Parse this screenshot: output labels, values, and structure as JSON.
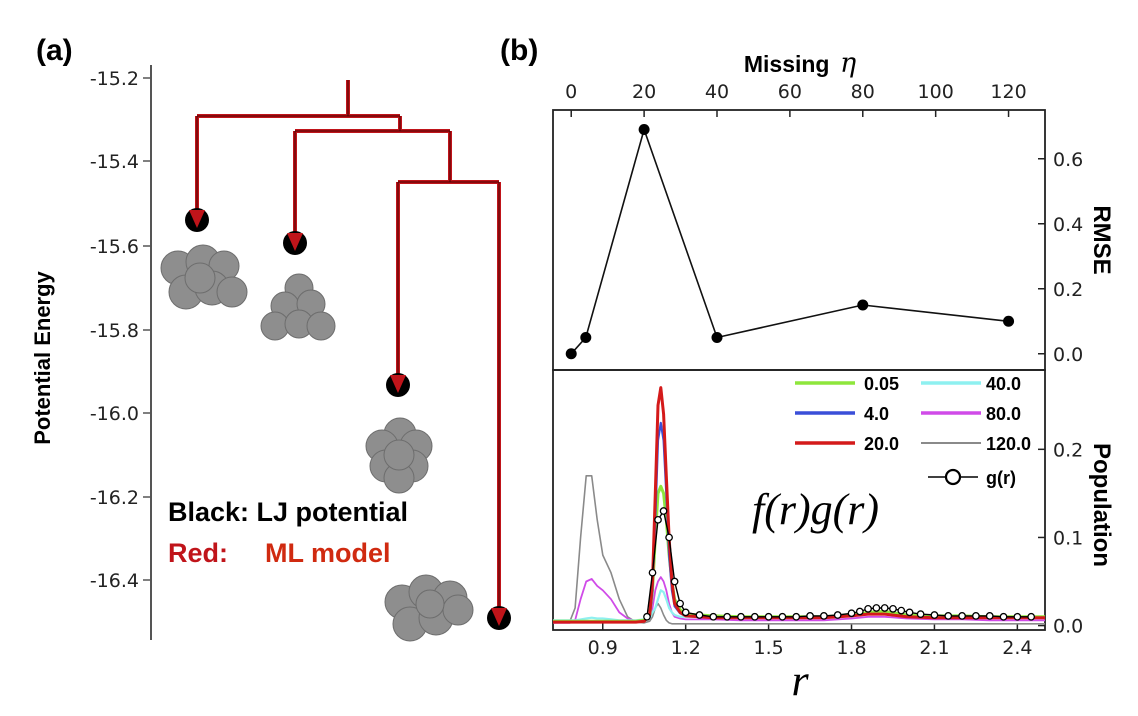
{
  "panel_a": {
    "label": "(a)",
    "ylabel": "Potential Energy",
    "yticks": [
      "-15.2",
      "-15.4",
      "-15.6",
      "-15.8",
      "-16.0",
      "-16.2",
      "-16.4"
    ],
    "legend_black": "Black: LJ potential",
    "legend_red_prefix": "Red:",
    "legend_red_value": "ML model",
    "colors": {
      "red": "#c0141a",
      "black": "#000000",
      "atom": "#8e8e8e"
    }
  },
  "panel_b": {
    "label": "(b)",
    "top_axis_label": "Missing",
    "top_axis_symbol": "η",
    "right_upper_label": "RMSE",
    "right_lower_label": "Population",
    "x_symbol": "r",
    "formula": "f(r)g(r)",
    "legend": [
      {
        "label": "0.05",
        "color": "#8ee63c"
      },
      {
        "label": "40.0",
        "color": "#8ef0f0"
      },
      {
        "label": "4.0",
        "color": "#3a4fd8"
      },
      {
        "label": "80.0",
        "color": "#d04be8"
      },
      {
        "label": "20.0",
        "color": "#d41a1a"
      },
      {
        "label": "120.0",
        "color": "#8a8a8a"
      },
      {
        "label": "g(r)",
        "color": "#000000"
      }
    ]
  },
  "chart_data": [
    {
      "type": "line",
      "x": [
        0,
        4,
        20,
        40,
        80,
        120
      ],
      "series": [
        {
          "values": [
            0.0,
            0.05,
            0.69,
            0.05,
            0.15,
            0.1
          ]
        }
      ],
      "xlabel": "Missing η",
      "ylabel": "RMSE",
      "xlim": [
        -5,
        130
      ],
      "ylim": [
        -0.05,
        0.75
      ],
      "xticks": [
        "0",
        "20",
        "40",
        "60",
        "80",
        "100",
        "120"
      ],
      "yticks": [
        "0.0",
        "0.2",
        "0.4",
        "0.6"
      ]
    },
    {
      "type": "line",
      "xlabel": "r",
      "ylabel": "Population",
      "xlim": [
        0.72,
        2.5
      ],
      "ylim": [
        -0.005,
        0.29
      ],
      "xticks": [
        "0.9",
        "1.2",
        "1.5",
        "1.8",
        "2.1",
        "2.4"
      ],
      "yticks": [
        "0.0",
        "0.1",
        "0.2"
      ],
      "r": [
        0.72,
        0.78,
        0.8,
        0.82,
        0.84,
        0.86,
        0.88,
        0.9,
        0.93,
        0.96,
        0.99,
        1.02,
        1.05,
        1.07,
        1.08,
        1.09,
        1.1,
        1.11,
        1.12,
        1.13,
        1.14,
        1.15,
        1.16,
        1.18,
        1.2,
        1.25,
        1.3,
        1.4,
        1.5,
        1.6,
        1.7,
        1.8,
        1.86,
        1.92,
        2.0,
        2.1,
        2.2,
        2.3,
        2.4,
        2.5
      ],
      "series": [
        {
          "name": "0.05",
          "values": [
            0.005,
            0.005,
            0.005,
            0.005,
            0.005,
            0.005,
            0.005,
            0.005,
            0.005,
            0.005,
            0.005,
            0.005,
            0.006,
            0.012,
            0.04,
            0.1,
            0.15,
            0.158,
            0.15,
            0.12,
            0.08,
            0.05,
            0.03,
            0.018,
            0.013,
            0.012,
            0.011,
            0.01,
            0.01,
            0.01,
            0.01,
            0.012,
            0.015,
            0.016,
            0.012,
            0.011,
            0.011,
            0.01,
            0.01,
            0.01
          ]
        },
        {
          "name": "40.0",
          "values": [
            0.006,
            0.006,
            0.006,
            0.007,
            0.008,
            0.009,
            0.008,
            0.008,
            0.007,
            0.006,
            0.006,
            0.006,
            0.007,
            0.009,
            0.015,
            0.02,
            0.03,
            0.04,
            0.038,
            0.03,
            0.02,
            0.015,
            0.012,
            0.01,
            0.01,
            0.01,
            0.01,
            0.01,
            0.01,
            0.01,
            0.01,
            0.012,
            0.014,
            0.014,
            0.011,
            0.01,
            0.01,
            0.01,
            0.01,
            0.01
          ]
        },
        {
          "name": "4.0",
          "values": [
            0.004,
            0.004,
            0.004,
            0.004,
            0.004,
            0.004,
            0.004,
            0.004,
            0.004,
            0.004,
            0.004,
            0.004,
            0.005,
            0.01,
            0.04,
            0.12,
            0.21,
            0.23,
            0.21,
            0.15,
            0.08,
            0.04,
            0.022,
            0.014,
            0.011,
            0.01,
            0.009,
            0.009,
            0.009,
            0.009,
            0.009,
            0.011,
            0.013,
            0.013,
            0.01,
            0.009,
            0.009,
            0.009,
            0.009,
            0.009
          ]
        },
        {
          "name": "80.0",
          "values": [
            0.003,
            0.003,
            0.006,
            0.03,
            0.05,
            0.053,
            0.045,
            0.04,
            0.03,
            0.015,
            0.008,
            0.005,
            0.006,
            0.012,
            0.02,
            0.04,
            0.05,
            0.055,
            0.05,
            0.04,
            0.025,
            0.015,
            0.01,
            0.008,
            0.007,
            0.007,
            0.007,
            0.006,
            0.006,
            0.006,
            0.006,
            0.008,
            0.01,
            0.01,
            0.008,
            0.007,
            0.007,
            0.006,
            0.006,
            0.006
          ]
        },
        {
          "name": "20.0",
          "values": [
            0.004,
            0.004,
            0.004,
            0.004,
            0.004,
            0.004,
            0.004,
            0.004,
            0.004,
            0.004,
            0.004,
            0.004,
            0.005,
            0.012,
            0.05,
            0.15,
            0.25,
            0.27,
            0.24,
            0.17,
            0.1,
            0.05,
            0.025,
            0.015,
            0.011,
            0.01,
            0.009,
            0.009,
            0.009,
            0.009,
            0.009,
            0.011,
            0.013,
            0.013,
            0.01,
            0.009,
            0.009,
            0.009,
            0.009,
            0.009
          ]
        },
        {
          "name": "120.0",
          "values": [
            0.003,
            0.004,
            0.02,
            0.1,
            0.17,
            0.17,
            0.12,
            0.08,
            0.06,
            0.03,
            0.01,
            0.004,
            0.003,
            0.005,
            0.01,
            0.02,
            0.025,
            0.02,
            0.012,
            0.006,
            0.003,
            0.002,
            0.002,
            0.002,
            0.002,
            0.002,
            0.002,
            0.002,
            0.002,
            0.002,
            0.002,
            0.002,
            0.002,
            0.002,
            0.002,
            0.002,
            0.002,
            0.002,
            0.002,
            0.002
          ]
        }
      ],
      "g_r": {
        "name": "g(r)",
        "x": [
          1.06,
          1.08,
          1.1,
          1.12,
          1.14,
          1.16,
          1.18,
          1.2,
          1.25,
          1.3,
          1.35,
          1.4,
          1.45,
          1.5,
          1.55,
          1.6,
          1.65,
          1.7,
          1.75,
          1.8,
          1.83,
          1.86,
          1.89,
          1.92,
          1.95,
          1.98,
          2.01,
          2.05,
          2.1,
          2.15,
          2.2,
          2.25,
          2.3,
          2.35,
          2.4,
          2.45
        ],
        "values": [
          0.01,
          0.06,
          0.12,
          0.13,
          0.1,
          0.05,
          0.025,
          0.015,
          0.012,
          0.01,
          0.01,
          0.01,
          0.01,
          0.01,
          0.01,
          0.01,
          0.011,
          0.011,
          0.012,
          0.014,
          0.016,
          0.019,
          0.02,
          0.02,
          0.019,
          0.017,
          0.015,
          0.013,
          0.012,
          0.011,
          0.011,
          0.011,
          0.011,
          0.01,
          0.01,
          0.01
        ]
      }
    }
  ]
}
